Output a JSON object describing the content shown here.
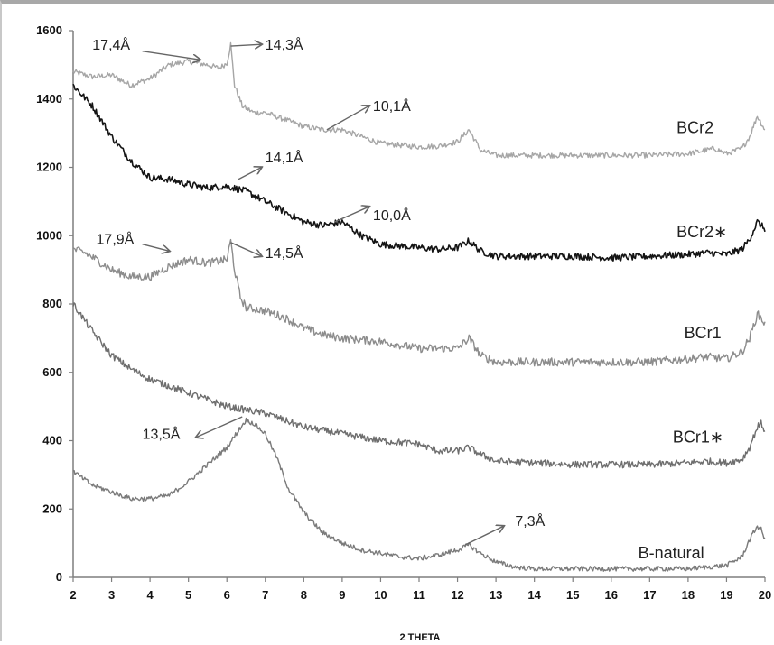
{
  "chart_data": {
    "type": "line",
    "title": "",
    "xlabel": "2 THETA",
    "ylabel": "",
    "xlim": [
      2,
      20
    ],
    "ylim": [
      0,
      1600
    ],
    "x_ticks": [
      2,
      3,
      4,
      5,
      6,
      7,
      8,
      9,
      10,
      11,
      12,
      13,
      14,
      15,
      16,
      17,
      18,
      19,
      20
    ],
    "y_ticks": [
      0,
      200,
      400,
      600,
      800,
      1000,
      1200,
      1400,
      1600
    ],
    "grid": false,
    "legend": "none",
    "series": [
      {
        "name": "BCr2",
        "color": "#a6a6a6",
        "x": [
          2,
          2.5,
          3,
          3.5,
          4,
          4.5,
          5,
          5.5,
          5.8,
          6.0,
          6.1,
          6.2,
          6.4,
          6.7,
          7,
          7.5,
          8,
          8.5,
          9,
          9.5,
          10,
          10.5,
          11,
          11.5,
          12,
          12.3,
          12.6,
          13,
          14,
          15,
          16,
          17,
          18,
          18.7,
          19,
          19.4,
          19.6,
          19.8,
          19.9,
          20
        ],
        "values": [
          1480,
          1465,
          1470,
          1440,
          1460,
          1500,
          1510,
          1500,
          1490,
          1505,
          1560,
          1440,
          1380,
          1360,
          1360,
          1340,
          1320,
          1310,
          1310,
          1290,
          1270,
          1265,
          1260,
          1262,
          1275,
          1310,
          1250,
          1235,
          1235,
          1235,
          1235,
          1235,
          1240,
          1255,
          1240,
          1255,
          1290,
          1350,
          1330,
          1310
        ],
        "noise": 8
      },
      {
        "name": "BCr2*",
        "color": "#141414",
        "x": [
          2,
          2.5,
          3,
          3.5,
          4,
          4.5,
          5,
          5.5,
          6,
          6.5,
          7,
          7.5,
          8,
          8.5,
          9,
          9.5,
          10,
          10.5,
          11,
          11.5,
          12,
          12.3,
          12.6,
          13,
          14,
          15,
          16,
          17,
          18,
          18.5,
          19,
          19.4,
          19.6,
          19.8,
          19.9,
          20
        ],
        "values": [
          1440,
          1380,
          1290,
          1220,
          1170,
          1165,
          1150,
          1140,
          1145,
          1130,
          1100,
          1070,
          1040,
          1030,
          1040,
          1000,
          975,
          970,
          965,
          960,
          965,
          985,
          955,
          940,
          940,
          940,
          935,
          940,
          945,
          950,
          945,
          960,
          990,
          1040,
          1030,
          1020
        ],
        "noise": 10
      },
      {
        "name": "BCr1",
        "color": "#8c8c8c",
        "x": [
          2,
          2.3,
          2.6,
          3,
          3.5,
          4,
          4.5,
          5,
          5.5,
          6,
          6.1,
          6.2,
          6.35,
          6.5,
          7,
          7.5,
          8,
          8.5,
          9,
          10,
          11,
          12,
          12.3,
          12.6,
          13,
          14,
          15,
          16,
          17,
          18,
          18.5,
          19,
          19.4,
          19.6,
          19.8,
          19.9,
          20
        ],
        "values": [
          960,
          950,
          930,
          900,
          880,
          880,
          910,
          930,
          920,
          930,
          985,
          900,
          820,
          790,
          780,
          760,
          730,
          710,
          700,
          690,
          670,
          670,
          700,
          650,
          630,
          630,
          630,
          630,
          630,
          640,
          645,
          640,
          660,
          700,
          770,
          760,
          740
        ],
        "noise": 12
      },
      {
        "name": "BCr1*",
        "color": "#6e6e6e",
        "x": [
          2,
          2.5,
          3,
          3.5,
          4,
          4.5,
          5,
          5.5,
          6,
          6.5,
          7,
          7.5,
          8,
          8.5,
          9,
          10,
          11,
          11.5,
          12,
          12.3,
          12.6,
          13,
          14,
          15,
          16,
          17,
          18,
          18.5,
          19,
          19.4,
          19.6,
          19.8,
          19.9,
          20
        ],
        "values": [
          800,
          720,
          650,
          610,
          580,
          560,
          540,
          520,
          500,
          490,
          480,
          460,
          440,
          430,
          420,
          400,
          390,
          370,
          370,
          380,
          360,
          340,
          335,
          330,
          330,
          330,
          335,
          340,
          335,
          345,
          380,
          440,
          450,
          430
        ],
        "noise": 10
      },
      {
        "name": "B-natural",
        "color": "#7a7a7a",
        "x": [
          2,
          2.5,
          3,
          3.5,
          4,
          4.5,
          5,
          5.5,
          6,
          6.3,
          6.5,
          6.7,
          7,
          7.3,
          7.6,
          8,
          8.5,
          9,
          9.5,
          10,
          10.5,
          11,
          11.5,
          12,
          12.3,
          12.6,
          13,
          13.5,
          14,
          15,
          16,
          17,
          18,
          18.5,
          19,
          19.4,
          19.6,
          19.8,
          19.9,
          20
        ],
        "values": [
          310,
          270,
          250,
          230,
          230,
          240,
          280,
          330,
          380,
          430,
          460,
          450,
          420,
          350,
          260,
          190,
          130,
          100,
          80,
          70,
          60,
          55,
          65,
          80,
          95,
          70,
          45,
          30,
          25,
          25,
          25,
          25,
          25,
          30,
          35,
          60,
          110,
          150,
          140,
          110
        ],
        "noise": 7
      }
    ],
    "series_labels": [
      {
        "text": "BCr2",
        "x": 17.7,
        "y": 1300
      },
      {
        "text": "BCr2∗",
        "x": 17.7,
        "y": 995
      },
      {
        "text": "BCr1",
        "x": 17.9,
        "y": 700
      },
      {
        "text": "BCr1∗",
        "x": 17.6,
        "y": 395
      },
      {
        "text": "B-natural",
        "x": 16.7,
        "y": 55
      }
    ],
    "annotations": [
      {
        "text": "17,4Å",
        "x": 2.5,
        "y": 1545,
        "arrow_from": [
          3.8,
          1540
        ],
        "arrow_to": [
          5.3,
          1515
        ]
      },
      {
        "text": "14,3Å",
        "x": 7.0,
        "y": 1545,
        "arrow_from": [
          6.1,
          1555
        ],
        "arrow_to": [
          6.9,
          1560
        ]
      },
      {
        "text": "10,1Å",
        "x": 9.8,
        "y": 1365,
        "arrow_from": [
          8.6,
          1310
        ],
        "arrow_to": [
          9.7,
          1380
        ]
      },
      {
        "text": "14,1Å",
        "x": 7.0,
        "y": 1215,
        "arrow_from": [
          6.3,
          1165
        ],
        "arrow_to": [
          6.9,
          1200
        ]
      },
      {
        "text": "10,0Å",
        "x": 9.8,
        "y": 1045,
        "arrow_from": [
          8.8,
          1040
        ],
        "arrow_to": [
          9.7,
          1085
        ]
      },
      {
        "text": "17,9Å",
        "x": 2.6,
        "y": 975,
        "arrow_from": [
          3.8,
          975
        ],
        "arrow_to": [
          4.5,
          955
        ]
      },
      {
        "text": "14,5Å",
        "x": 7.0,
        "y": 935,
        "arrow_from": [
          6.1,
          980
        ],
        "arrow_to": [
          6.9,
          940
        ]
      },
      {
        "text": "13,5Å",
        "x": 3.8,
        "y": 405,
        "arrow_from": [
          6.4,
          470
        ],
        "arrow_to": [
          5.2,
          410
        ]
      },
      {
        "text": "7,3Å",
        "x": 13.5,
        "y": 150,
        "arrow_from": [
          12.2,
          95
        ],
        "arrow_to": [
          13.2,
          150
        ]
      }
    ]
  }
}
